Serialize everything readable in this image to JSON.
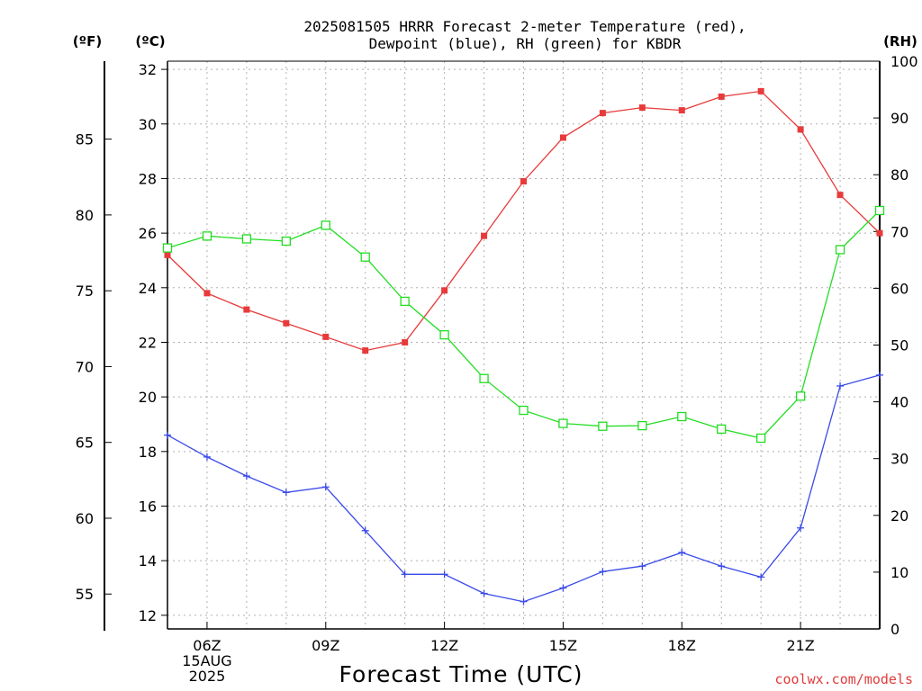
{
  "chart_data": {
    "type": "line",
    "title_line1": "2025081505 HRRR Forecast 2-meter Temperature (red),",
    "title_line2": "Dewpoint (blue), RH (green) for KBDR",
    "xlabel": "Forecast Time (UTC)",
    "credit": "coolwx.com/models",
    "units": {
      "fahrenheit": "(ºF)",
      "celsius": "(ºC)",
      "rh": "(RH)"
    },
    "x_hours": [
      5,
      6,
      7,
      8,
      9,
      10,
      11,
      12,
      13,
      14,
      15,
      16,
      17,
      18,
      19,
      20,
      21,
      22,
      23
    ],
    "x_ticks": [
      {
        "hour": 6,
        "label": "06Z",
        "label2": "15AUG",
        "label3": "2025"
      },
      {
        "hour": 9,
        "label": "09Z"
      },
      {
        "hour": 12,
        "label": "12Z"
      },
      {
        "hour": 15,
        "label": "15Z"
      },
      {
        "hour": 18,
        "label": "18Z"
      },
      {
        "hour": 21,
        "label": "21Z"
      }
    ],
    "celsius_axis": {
      "range": [
        11.5,
        32.3
      ],
      "ticks": [
        "12",
        "14",
        "16",
        "18",
        "20",
        "22",
        "24",
        "26",
        "28",
        "30",
        "32"
      ]
    },
    "fahrenheit_axis": {
      "ticks": [
        "55",
        "60",
        "65",
        "70",
        "75",
        "80",
        "85"
      ]
    },
    "rh_axis": {
      "range": [
        0,
        100
      ],
      "ticks": [
        "0",
        "10",
        "20",
        "30",
        "40",
        "50",
        "60",
        "70",
        "80",
        "90",
        "100"
      ]
    },
    "grid": true,
    "series": [
      {
        "key": "temperature",
        "color": "#e83a3a",
        "marker": "filled-square",
        "axis": "celsius",
        "values": [
          25.2,
          23.8,
          23.2,
          22.7,
          22.2,
          21.7,
          22.0,
          23.9,
          25.9,
          27.9,
          29.5,
          30.4,
          30.6,
          30.5,
          31.0,
          31.2,
          29.8,
          27.4,
          26.0
        ]
      },
      {
        "key": "dewpoint",
        "color": "#3a4ae8",
        "marker": "plus",
        "axis": "celsius",
        "values": [
          18.6,
          17.8,
          17.1,
          16.5,
          16.7,
          15.1,
          13.5,
          13.5,
          12.8,
          12.5,
          13.0,
          13.6,
          13.8,
          14.3,
          13.8,
          13.4,
          15.2,
          20.4,
          20.8
        ]
      },
      {
        "key": "rh",
        "color": "#22dd22",
        "marker": "open-square",
        "axis": "rh",
        "values": [
          67.1,
          69.2,
          68.7,
          68.3,
          71.1,
          65.5,
          57.7,
          51.8,
          44.1,
          38.5,
          36.2,
          35.7,
          35.8,
          37.4,
          35.2,
          33.6,
          41.0,
          66.8,
          73.7
        ]
      }
    ]
  }
}
